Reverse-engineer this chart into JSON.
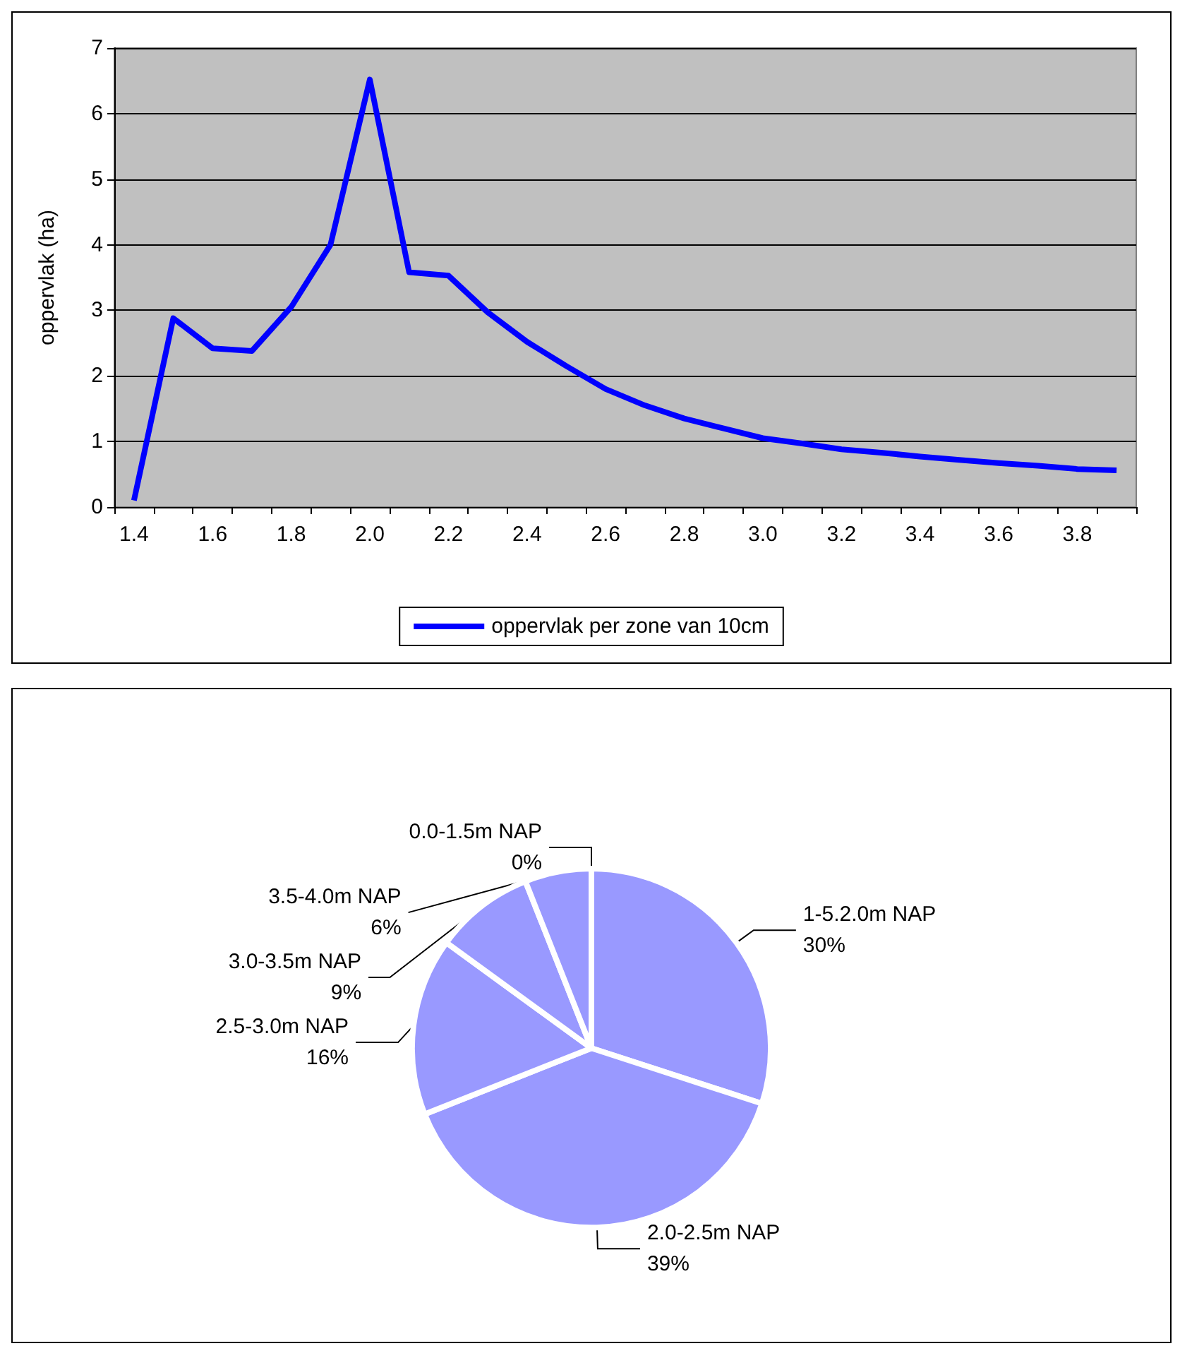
{
  "chart_data": [
    {
      "type": "line",
      "ylabel": "oppervlak (ha)",
      "categories": [
        "1.4",
        null,
        "1.6",
        null,
        "1.8",
        null,
        "2.0",
        null,
        "2.2",
        null,
        "2.4",
        null,
        "2.6",
        null,
        "2.8",
        null,
        "3.0",
        null,
        "3.2",
        null,
        "3.4",
        null,
        "3.6",
        null,
        "3.8",
        null
      ],
      "series": [
        {
          "name": "oppervlak per zone van 10cm",
          "color": "#0000ff",
          "values": [
            0.1,
            2.88,
            2.42,
            2.38,
            3.05,
            4.0,
            6.52,
            3.58,
            3.53,
            2.97,
            2.52,
            2.15,
            1.8,
            1.55,
            1.35,
            1.2,
            1.05,
            0.97,
            0.88,
            0.83,
            0.77,
            0.72,
            0.67,
            0.63,
            0.58,
            0.56
          ]
        }
      ],
      "ylim": [
        0,
        7
      ],
      "yticks": [
        0,
        1,
        2,
        3,
        4,
        5,
        6,
        7
      ],
      "grid": "y",
      "legend": "bottom",
      "marker": "none",
      "line_style": "solid"
    },
    {
      "type": "pie",
      "categories": [
        "0.0-1.5m NAP",
        "1-5.2.0m NAP",
        "2.0-2.5m NAP",
        "2.5-3.0m NAP",
        "3.0-3.5m NAP",
        "3.5-4.0m NAP"
      ],
      "values": [
        0,
        30,
        39,
        16,
        9,
        6
      ],
      "value_labels": [
        "0%",
        "30%",
        "39%",
        "16%",
        "9%",
        "6%"
      ],
      "colors": [
        "#9999ff",
        "#9999ff",
        "#9999ff",
        "#9999ff",
        "#9999ff",
        "#9999ff"
      ]
    }
  ]
}
